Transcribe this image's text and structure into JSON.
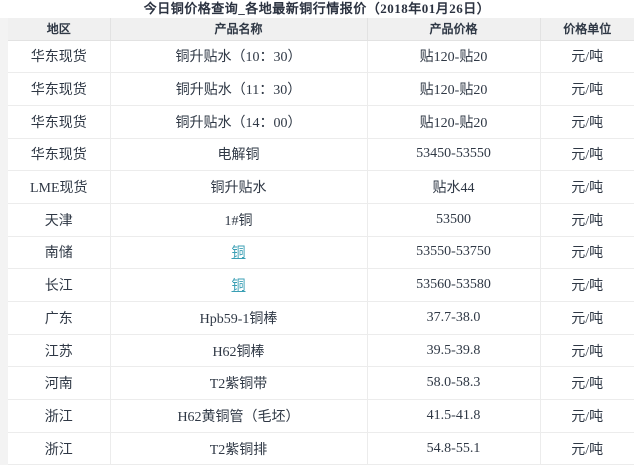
{
  "page": {
    "title": "今日铜价格查询_各地最新铜行情报价（2018年01月26日）"
  },
  "table": {
    "columns": [
      "地区",
      "产品名称",
      "产品价格",
      "价格单位"
    ],
    "rows": [
      {
        "region": "华东现货",
        "product": "铜升贴水（10：30）",
        "product_is_link": false,
        "price": "贴120-贴20",
        "unit": "元/吨"
      },
      {
        "region": "华东现货",
        "product": "铜升贴水（11：30）",
        "product_is_link": false,
        "price": "贴120-贴20",
        "unit": "元/吨"
      },
      {
        "region": "华东现货",
        "product": "铜升贴水（14：00）",
        "product_is_link": false,
        "price": "贴120-贴20",
        "unit": "元/吨"
      },
      {
        "region": "华东现货",
        "product": "电解铜",
        "product_is_link": false,
        "price": "53450-53550",
        "unit": "元/吨"
      },
      {
        "region": "LME现货",
        "product": "铜升贴水",
        "product_is_link": false,
        "price": "贴水44",
        "unit": "元/吨"
      },
      {
        "region": "天津",
        "product": "1#铜",
        "product_is_link": false,
        "price": "53500",
        "unit": "元/吨"
      },
      {
        "region": "南储",
        "product": "铜",
        "product_is_link": true,
        "price": "53550-53750",
        "unit": "元/吨"
      },
      {
        "region": "长江",
        "product": "铜",
        "product_is_link": true,
        "price": "53560-53580",
        "unit": "元/吨"
      },
      {
        "region": "广东",
        "product": "Hpb59-1铜棒",
        "product_is_link": false,
        "price": "37.7-38.0",
        "unit": "元/吨"
      },
      {
        "region": "江苏",
        "product": "H62铜棒",
        "product_is_link": false,
        "price": "39.5-39.8",
        "unit": "元/吨"
      },
      {
        "region": "河南",
        "product": "T2紫铜带",
        "product_is_link": false,
        "price": "58.0-58.3",
        "unit": "元/吨"
      },
      {
        "region": "浙江",
        "product": "H62黄铜管（毛坯）",
        "product_is_link": false,
        "price": "41.5-41.8",
        "unit": "元/吨"
      },
      {
        "region": "浙江",
        "product": "T2紫铜排",
        "product_is_link": false,
        "price": "54.8-55.1",
        "unit": "元/吨"
      }
    ]
  },
  "colors": {
    "link": "#3a9fb4",
    "header_bg": "#f0f0f0",
    "border": "#ececec",
    "text": "#2f3845",
    "title": "#2b3240",
    "gutter": "#f3f3f3"
  }
}
